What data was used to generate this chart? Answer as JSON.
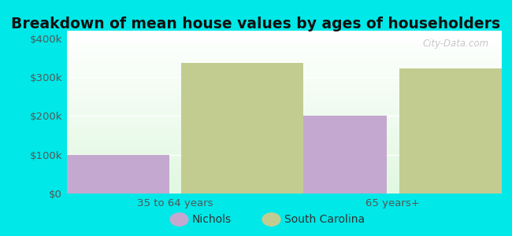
{
  "title": "Breakdown of mean house values by ages of householders",
  "categories": [
    "35 to 64 years",
    "65 years+"
  ],
  "series": [
    {
      "label": "Nichols",
      "values": [
        100000,
        200000
      ],
      "color": "#c4a8d0"
    },
    {
      "label": "South Carolina",
      "values": [
        337000,
        322000
      ],
      "color": "#c2cc90"
    }
  ],
  "ylim": [
    0,
    420000
  ],
  "yticks": [
    0,
    100000,
    200000,
    300000,
    400000
  ],
  "ytick_labels": [
    "$0",
    "$100k",
    "$200k",
    "$300k",
    "$400k"
  ],
  "background_color": "#00e8e8",
  "plot_bg_top_left": "#c8eec8",
  "plot_bg_bottom_right": "#f8fff8",
  "title_fontsize": 13.5,
  "tick_fontsize": 9.5,
  "legend_fontsize": 10,
  "bar_width": 0.28,
  "watermark": "City-Data.com"
}
